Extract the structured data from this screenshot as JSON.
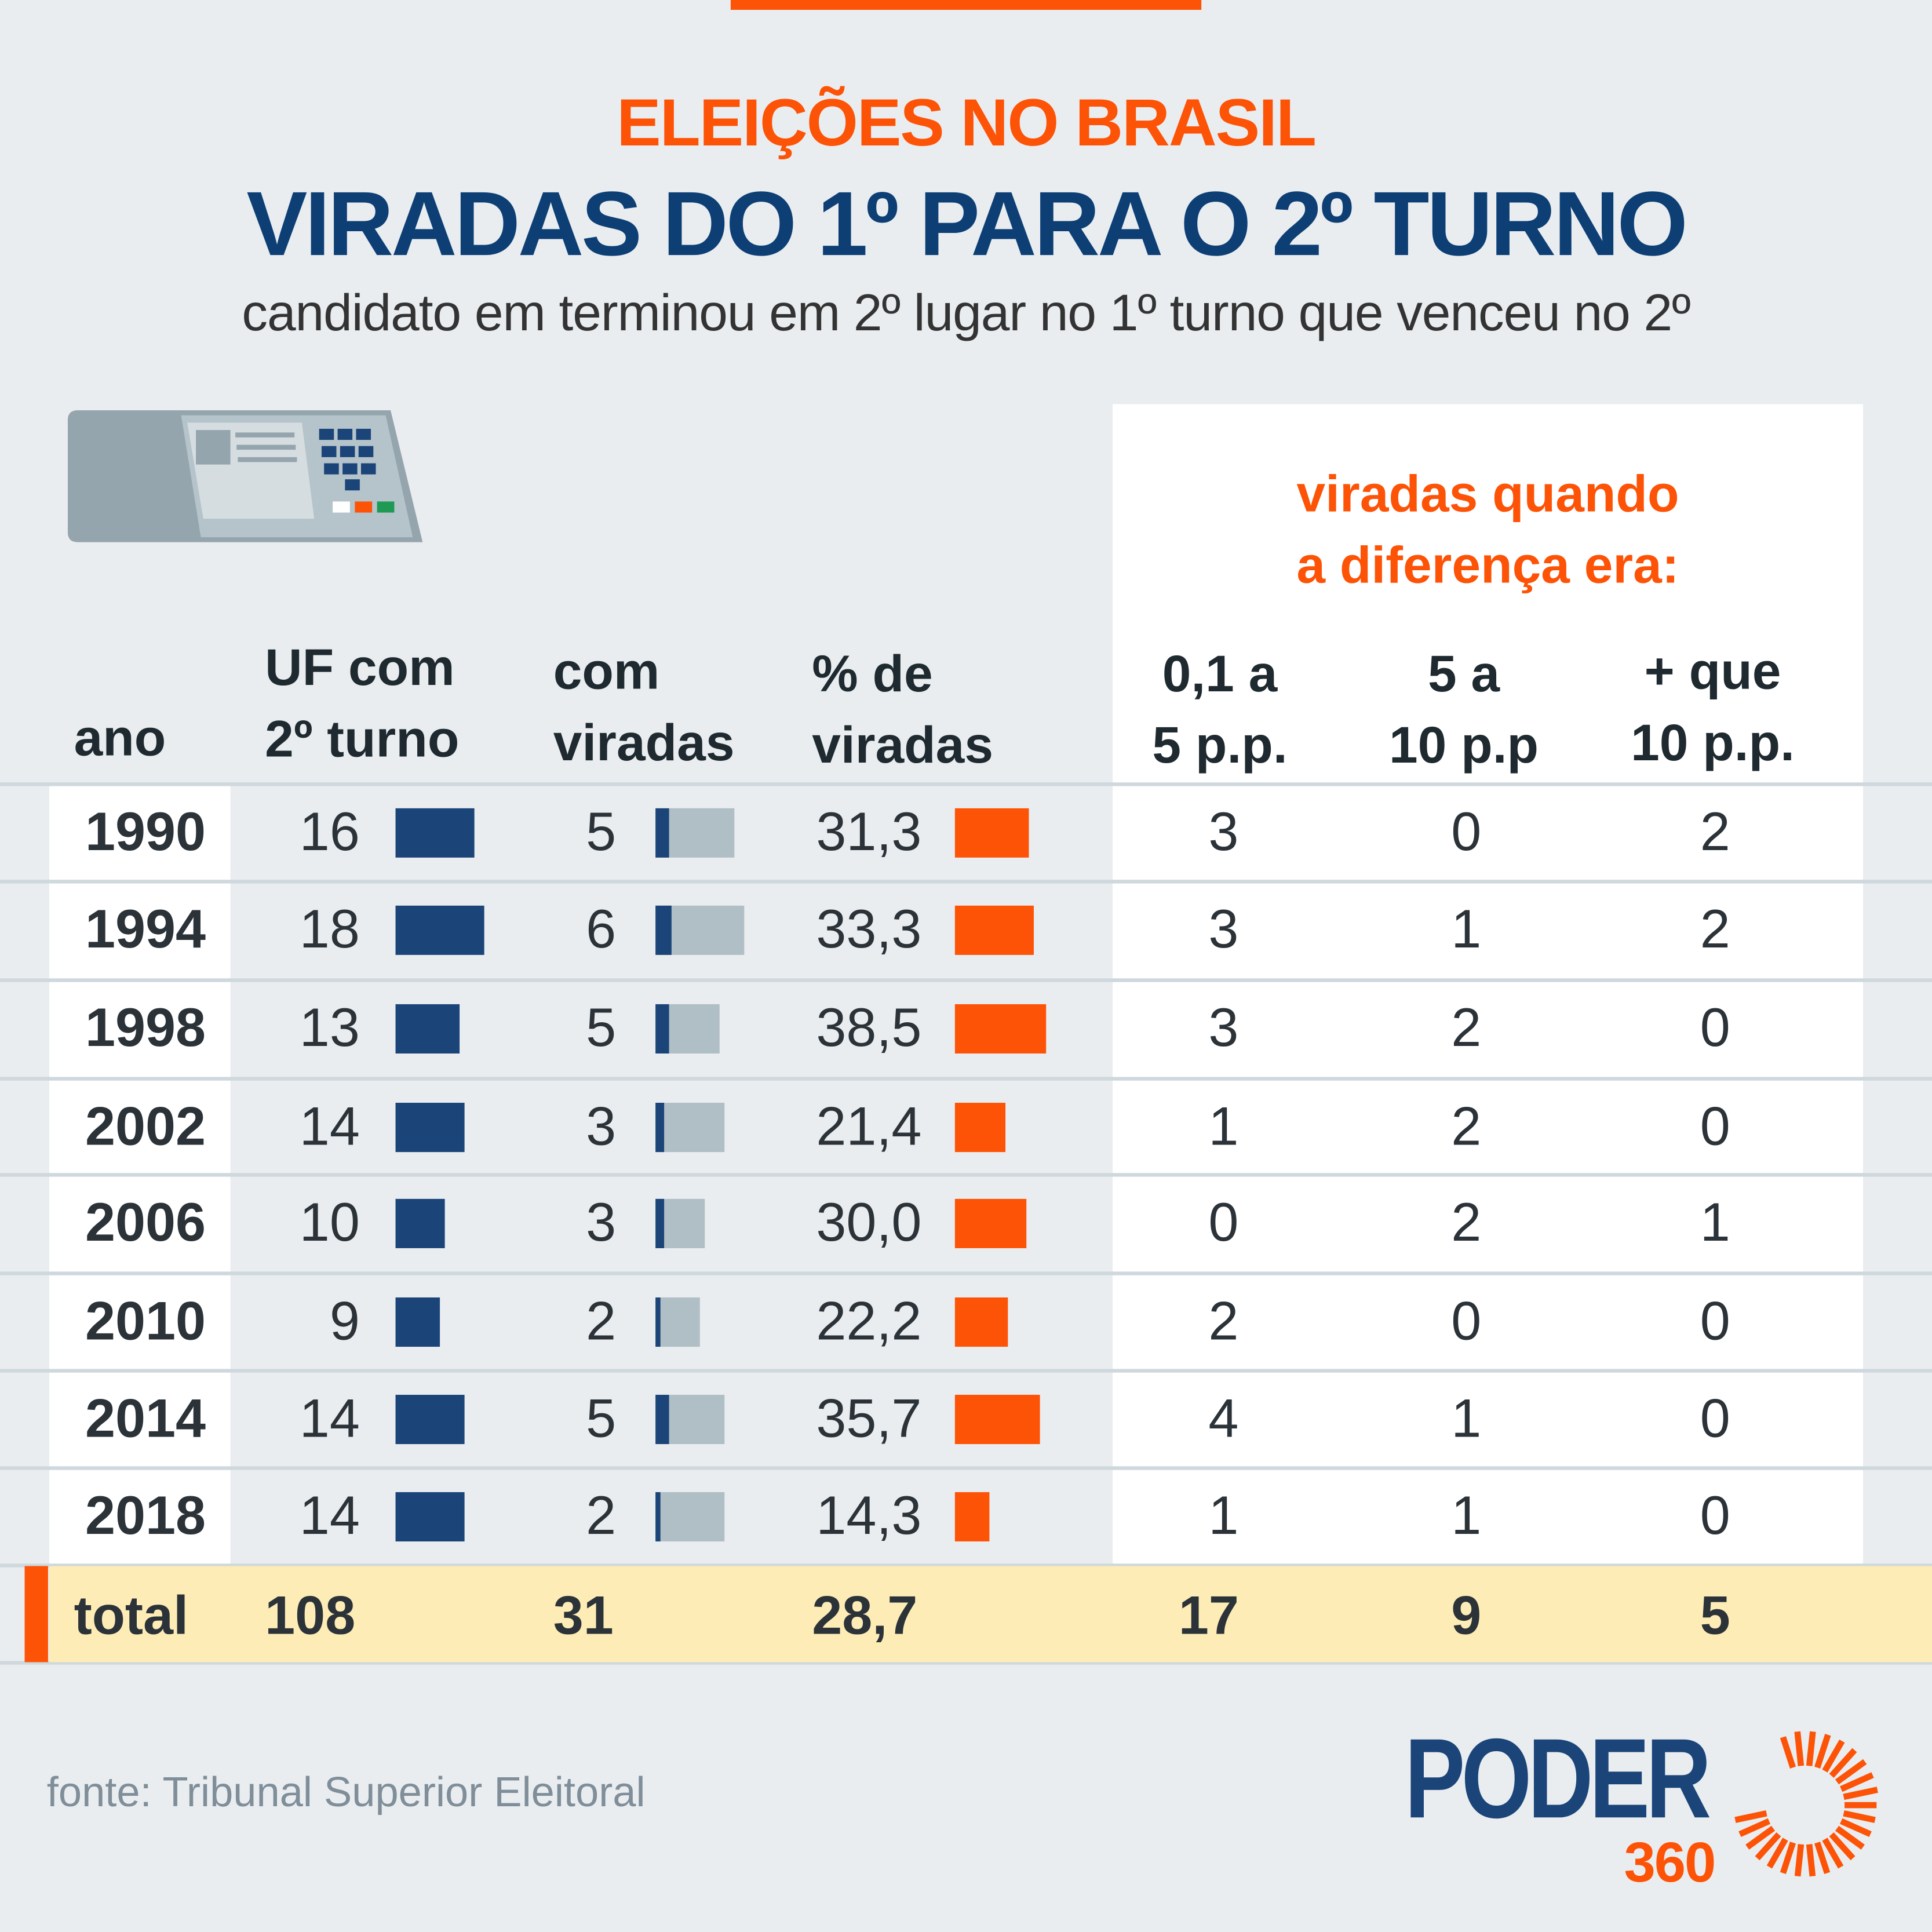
{
  "header": {
    "kicker": "ELEIÇÕES NO BRASIL",
    "title": "VIRADAS DO 1º PARA O 2º TURNO",
    "subtitle": "candidato em terminou em 2º lugar no 1º turno que venceu no 2º"
  },
  "panel_title": [
    "viradas quando",
    "a diferença era:"
  ],
  "columns": {
    "ano": "ano",
    "uf": [
      "UF com",
      "2º turno"
    ],
    "com": [
      "com",
      "viradas"
    ],
    "pct": [
      "% de",
      "viradas"
    ],
    "d1": [
      "0,1 a",
      "5 p.p."
    ],
    "d2": [
      "5 a",
      "10 p.p"
    ],
    "d3": [
      "+ que",
      "10 p.p."
    ]
  },
  "rows": [
    {
      "ano": "1990",
      "uf": 16,
      "com": 5,
      "pct": "31,3",
      "d1": 3,
      "d2": 0,
      "d3": 2
    },
    {
      "ano": "1994",
      "uf": 18,
      "com": 6,
      "pct": "33,3",
      "d1": 3,
      "d2": 1,
      "d3": 2
    },
    {
      "ano": "1998",
      "uf": 13,
      "com": 5,
      "pct": "38,5",
      "d1": 3,
      "d2": 2,
      "d3": 0
    },
    {
      "ano": "2002",
      "uf": 14,
      "com": 3,
      "pct": "21,4",
      "d1": 1,
      "d2": 2,
      "d3": 0
    },
    {
      "ano": "2006",
      "uf": 10,
      "com": 3,
      "pct": "30,0",
      "d1": 0,
      "d2": 2,
      "d3": 1
    },
    {
      "ano": "2010",
      "uf": 9,
      "com": 2,
      "pct": "22,2",
      "d1": 2,
      "d2": 0,
      "d3": 0
    },
    {
      "ano": "2014",
      "uf": 14,
      "com": 5,
      "pct": "35,7",
      "d1": 4,
      "d2": 1,
      "d3": 0
    },
    {
      "ano": "2018",
      "uf": 14,
      "com": 2,
      "pct": "14,3",
      "d1": 1,
      "d2": 1,
      "d3": 0
    }
  ],
  "total": {
    "label": "total",
    "uf": "108",
    "com": "31",
    "pct": "28,7",
    "d1": "17",
    "d2": "9",
    "d3": "5"
  },
  "footer": {
    "source": "fonte: Tribunal Superior Eleitoral",
    "logo": "PODER",
    "logo_sub": "360"
  },
  "colors": {
    "orange": "#fd5307",
    "navy": "#1b4479",
    "gray_bar": "#b0bec5",
    "total_bg": "#fdecb5"
  },
  "icons": [
    "voting-machine-icon",
    "sun-logo-icon"
  ]
}
